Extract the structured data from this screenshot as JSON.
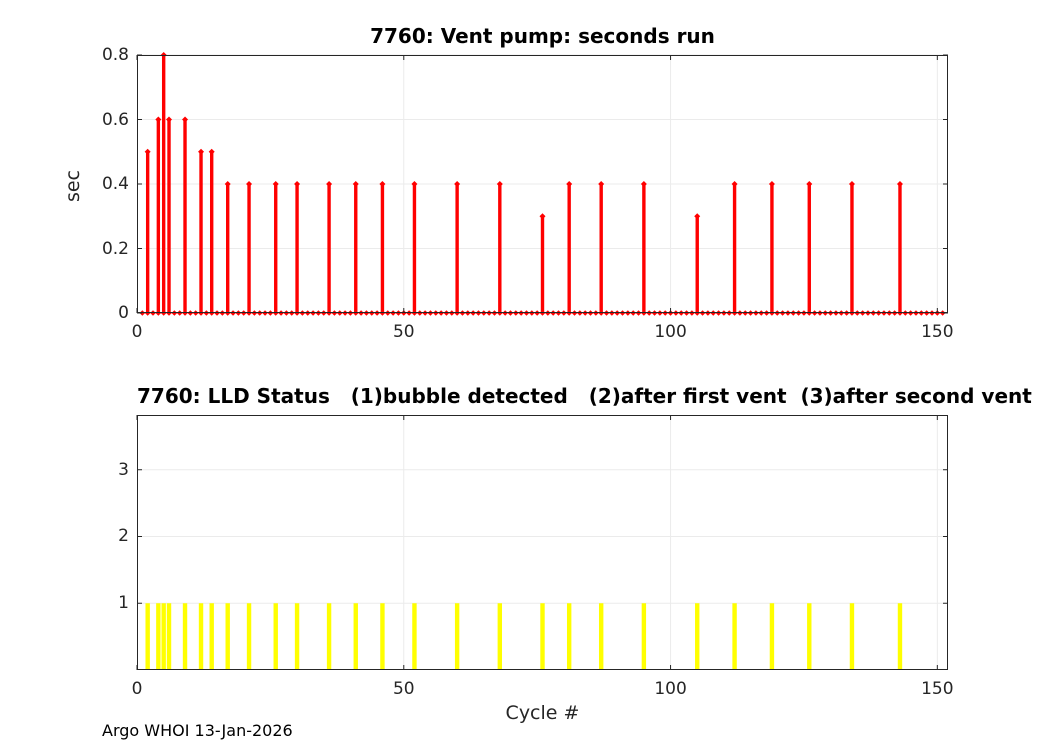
{
  "figure": {
    "footer": "Argo WHOI 13-Jan-2026"
  },
  "chart_data": [
    {
      "type": "stem",
      "title": "7760: Vent pump: seconds run",
      "ylabel": "sec",
      "xlim": [
        0,
        152
      ],
      "ylim": [
        0,
        0.8
      ],
      "xticks": [
        0,
        50,
        100,
        150
      ],
      "yticks": [
        0,
        0.2,
        0.4,
        0.6,
        0.8
      ],
      "grid": true,
      "series_color": "#ff0000",
      "zero_markers": {
        "from": 1,
        "to": 151,
        "value": 0
      },
      "points": [
        [
          2,
          0.5
        ],
        [
          4,
          0.6
        ],
        [
          5,
          0.8
        ],
        [
          6,
          0.6
        ],
        [
          9,
          0.6
        ],
        [
          12,
          0.5
        ],
        [
          14,
          0.5
        ],
        [
          17,
          0.4
        ],
        [
          21,
          0.4
        ],
        [
          26,
          0.4
        ],
        [
          30,
          0.4
        ],
        [
          36,
          0.4
        ],
        [
          41,
          0.4
        ],
        [
          46,
          0.4
        ],
        [
          52,
          0.4
        ],
        [
          60,
          0.4
        ],
        [
          68,
          0.4
        ],
        [
          76,
          0.3
        ],
        [
          81,
          0.4
        ],
        [
          87,
          0.4
        ],
        [
          95,
          0.4
        ],
        [
          105,
          0.3
        ],
        [
          112,
          0.4
        ],
        [
          119,
          0.4
        ],
        [
          126,
          0.4
        ],
        [
          134,
          0.4
        ],
        [
          143,
          0.4
        ]
      ]
    },
    {
      "type": "bar",
      "title": "7760: LLD Status   (1)bubble detected   (2)after first vent  (3)after second vent",
      "xlabel": "Cycle #",
      "xlim": [
        0,
        152
      ],
      "ylim": [
        0,
        3.82
      ],
      "xticks": [
        0,
        50,
        100,
        150
      ],
      "yticks": [
        1,
        2,
        3
      ],
      "grid": true,
      "series_color": "#ffff00",
      "bar_value": 1,
      "bar_x": [
        2,
        4,
        5,
        6,
        9,
        12,
        14,
        17,
        21,
        26,
        30,
        36,
        41,
        46,
        52,
        60,
        68,
        76,
        81,
        87,
        95,
        105,
        112,
        119,
        126,
        134,
        143
      ]
    }
  ]
}
